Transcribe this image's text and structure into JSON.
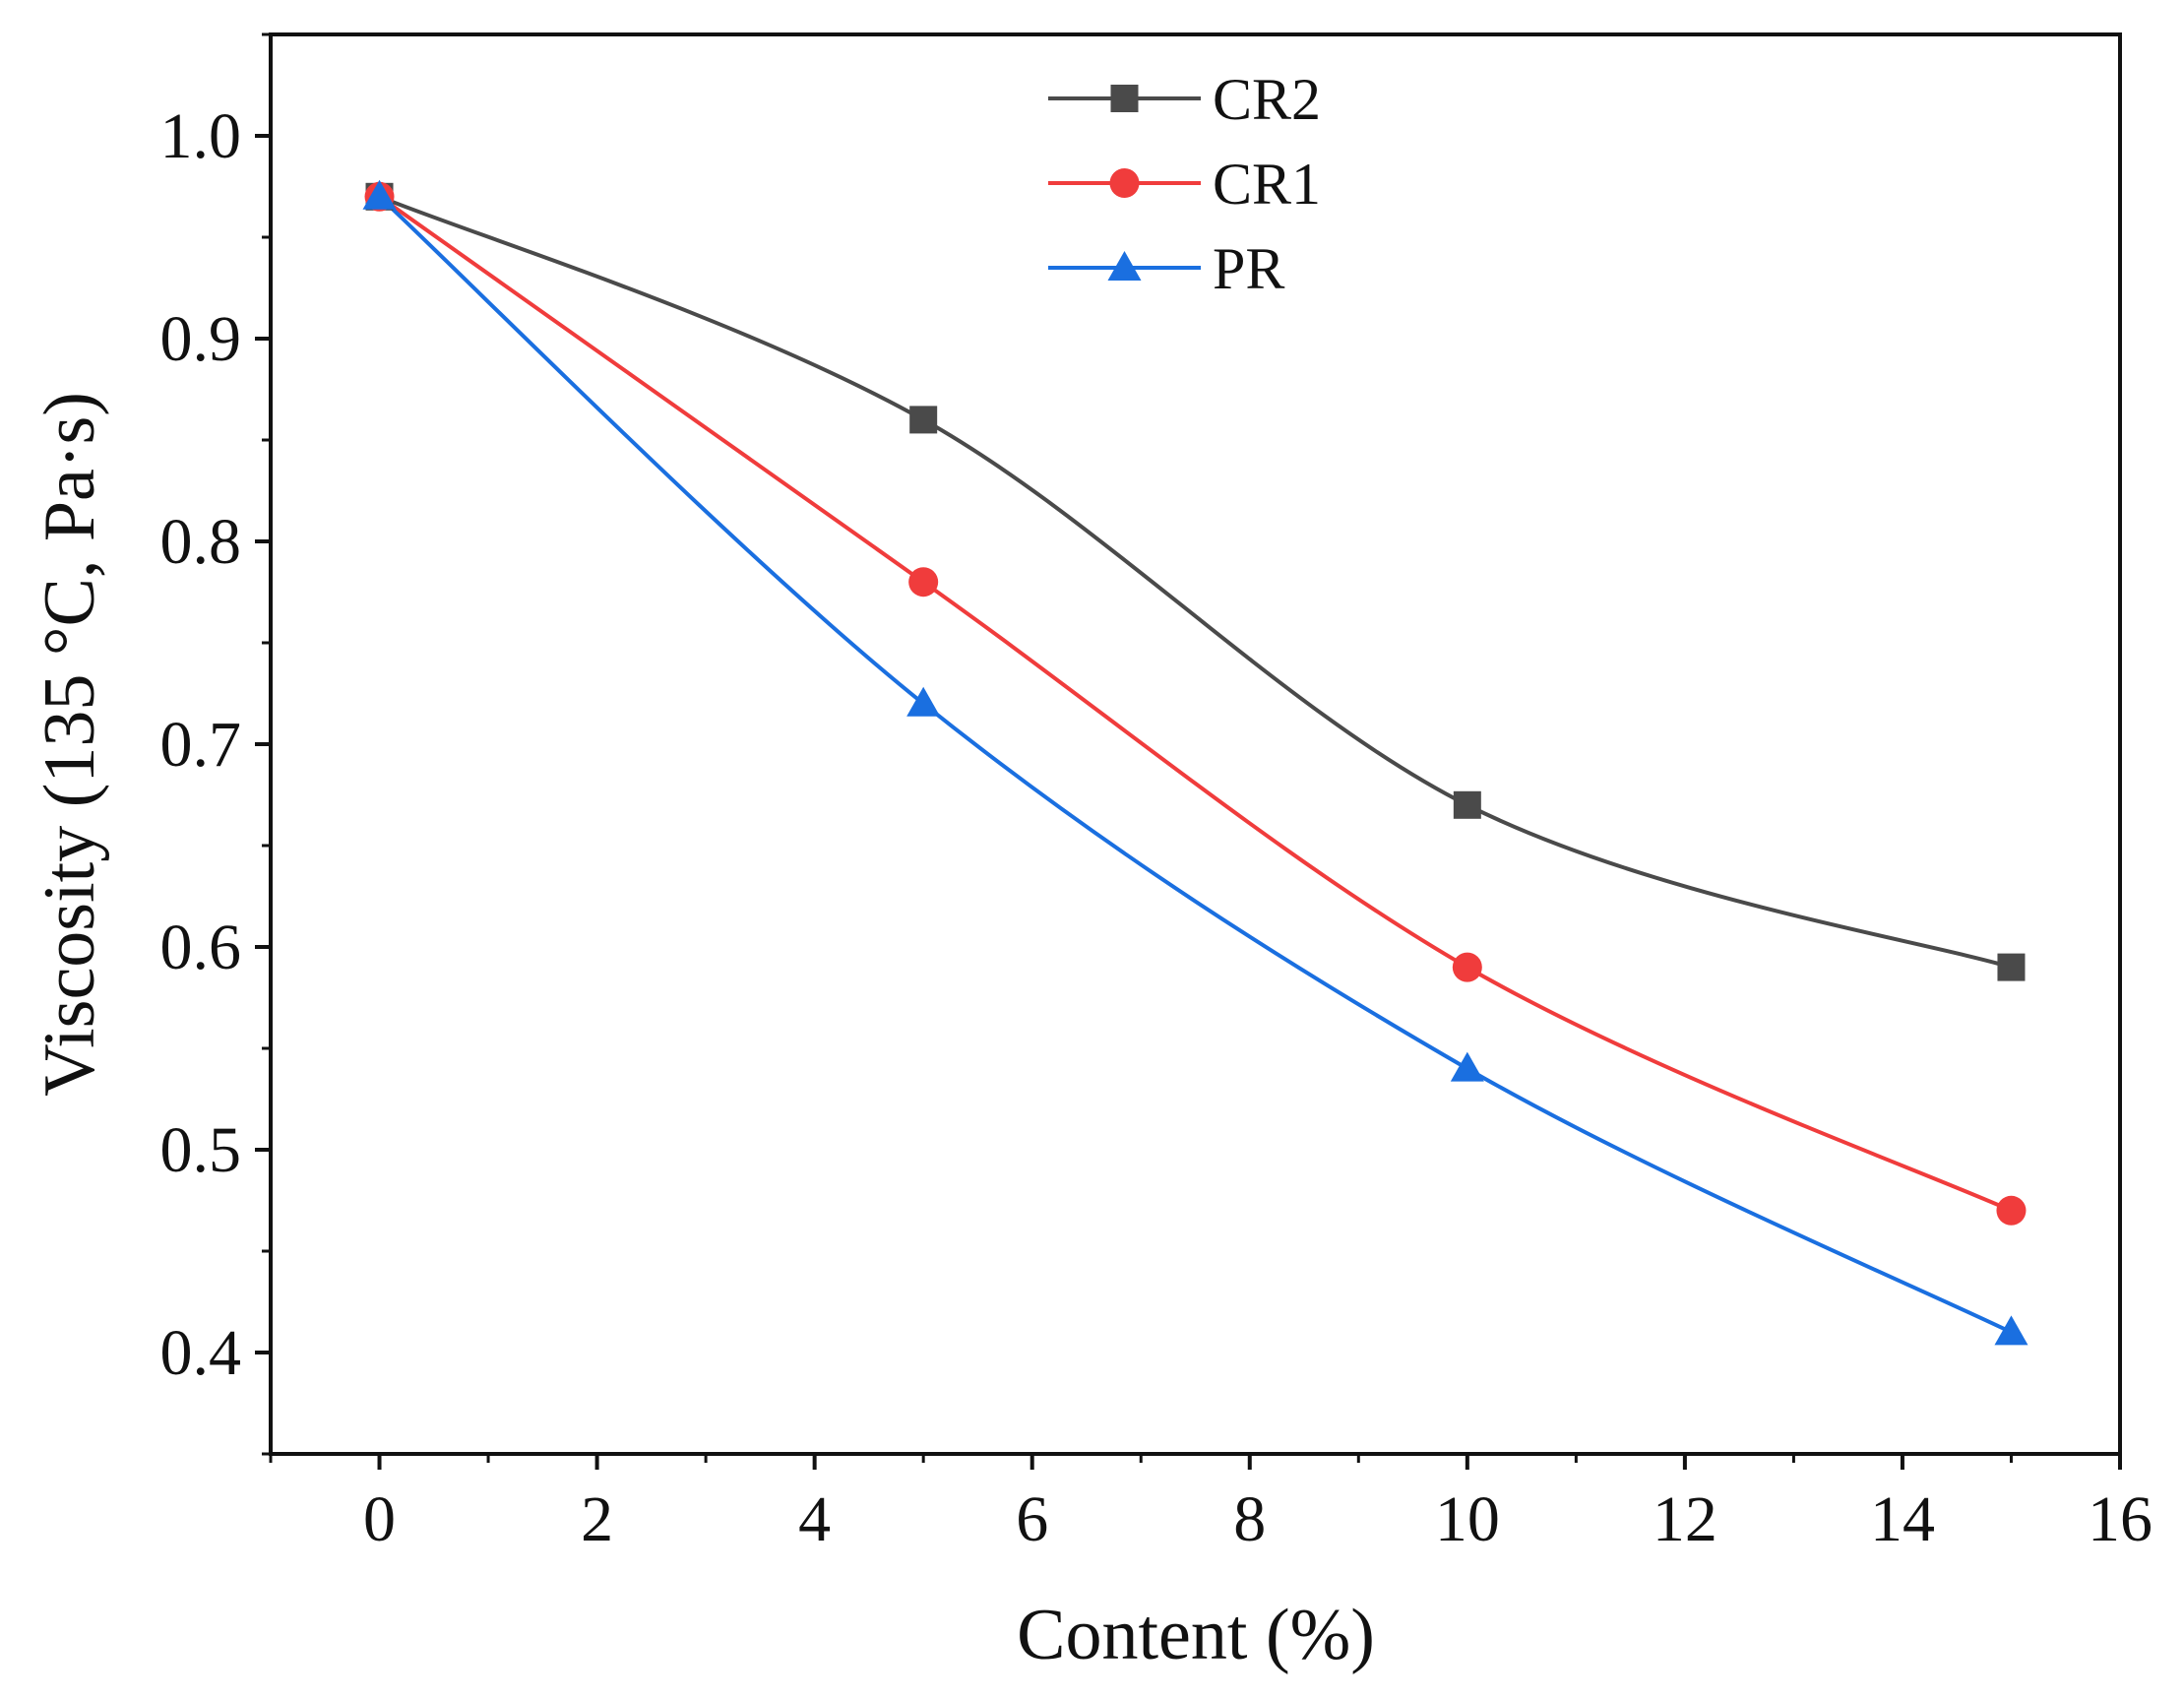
{
  "chart_data": {
    "type": "line",
    "title": "",
    "xlabel": "Content (%)",
    "ylabel": "Viscosity (135 °C, Pa·s)",
    "xlim": [
      -1,
      16
    ],
    "ylim": [
      0.35,
      1.05
    ],
    "x_ticks": [
      0,
      2,
      4,
      6,
      8,
      10,
      12,
      14,
      16
    ],
    "y_ticks": [
      0.4,
      0.5,
      0.6,
      0.7,
      0.8,
      0.9,
      1.0
    ],
    "x": [
      0,
      5,
      10,
      15
    ],
    "grid": false,
    "legend_position": "top-center",
    "series": [
      {
        "name": "CR2",
        "color": "#4a4a4a",
        "marker": "square",
        "values": [
          0.97,
          0.86,
          0.67,
          0.59
        ]
      },
      {
        "name": "CR1",
        "color": "#f03c3c",
        "marker": "circle",
        "values": [
          0.97,
          0.78,
          0.59,
          0.47
        ]
      },
      {
        "name": "PR",
        "color": "#1a6fe0",
        "marker": "triangle",
        "values": [
          0.97,
          0.72,
          0.54,
          0.41
        ]
      }
    ]
  }
}
